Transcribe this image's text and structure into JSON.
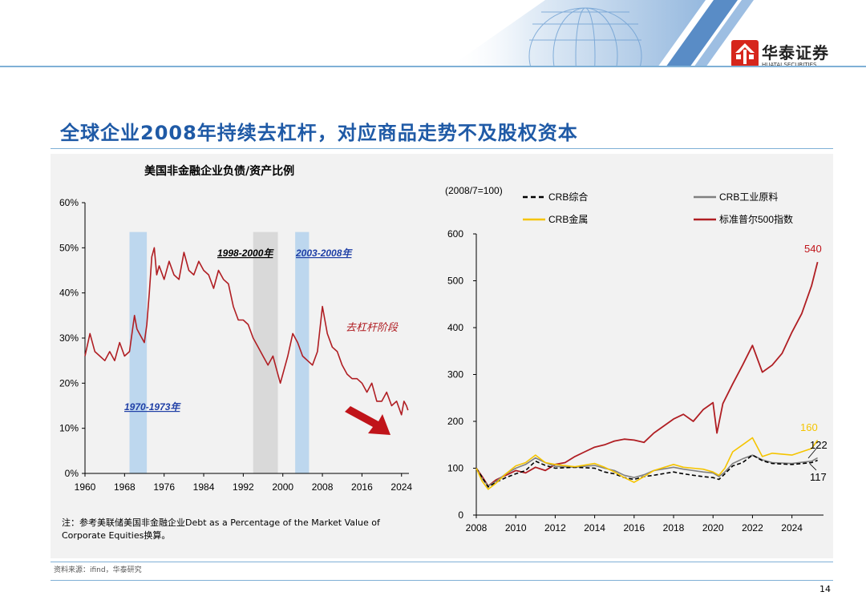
{
  "header": {
    "logo_cn": "华泰证券",
    "logo_en": "HUATAI SECURITIES"
  },
  "slide": {
    "title": "全球企业2008年持续去杠杆，对应商品走势不及股权资本",
    "note": "注：参考美联储美国非金融企业Debt as a Percentage of the Market Value of Corporate Equities换算。",
    "source": "资料来源：ifind，华泰研究",
    "page_number": "14"
  },
  "colors": {
    "accent_blue": "#1f5aa6",
    "line_red": "#b01e23",
    "bar_blue": "#bdd7ee",
    "bar_gray": "#d9d9d9",
    "crb_gold": "#f5c400",
    "crb_gray": "#808080",
    "crb_black": "#000000"
  },
  "chart_data": [
    {
      "type": "line",
      "title": "美国非金融企业负债/资产比例",
      "y_tick_labels": [
        "0%",
        "10%",
        "20%",
        "30%",
        "40%",
        "50%",
        "60%"
      ],
      "x_tick_labels": [
        "1960",
        "1968",
        "1976",
        "1984",
        "1992",
        "2000",
        "2008",
        "2016",
        "2024"
      ],
      "xlim": [
        1960,
        2025.5
      ],
      "ylim": [
        0,
        60
      ],
      "grid": false,
      "series": [
        {
          "x": [
            1960,
            1961,
            1962,
            1963,
            1964,
            1965,
            1966,
            1967,
            1968,
            1969,
            1970,
            1970.5,
            1971,
            1971.5,
            1972,
            1972.5,
            1973,
            1973.5,
            1974,
            1974.5,
            1975,
            1976,
            1977,
            1978,
            1979,
            1980,
            1981,
            1982,
            1983,
            1984,
            1985,
            1986,
            1987,
            1988,
            1989,
            1990,
            1991,
            1992,
            1993,
            1994,
            1995,
            1996,
            1997,
            1998,
            1999,
            1999.5,
            2000,
            2001,
            2002,
            2003,
            2004,
            2005,
            2006,
            2007,
            2008,
            2009,
            2010,
            2011,
            2012,
            2013,
            2014,
            2015,
            2016,
            2017,
            2018,
            2019,
            2020,
            2021,
            2022,
            2023,
            2024,
            2024.5,
            2025,
            2025.3
          ],
          "y": [
            26,
            31,
            27,
            26,
            25,
            27,
            25,
            29,
            26,
            27,
            35,
            32,
            31,
            30,
            29,
            33,
            40,
            48,
            50,
            44,
            46,
            43,
            47,
            44,
            43,
            49,
            45,
            44,
            47,
            45,
            44,
            41,
            45,
            43,
            42,
            37,
            34,
            34,
            33,
            30,
            28,
            26,
            24,
            26,
            22,
            20,
            22,
            26,
            31,
            29,
            26,
            25,
            24,
            27,
            37,
            31,
            28,
            27,
            24,
            22,
            21,
            21,
            20,
            18,
            20,
            16,
            16,
            18,
            15,
            16,
            13,
            16,
            15,
            14
          ],
          "color": "#b01e23"
        }
      ],
      "highlight_periods": [
        {
          "label": "1970-1973年",
          "start": 1969,
          "end": 1972.5,
          "color": "#bdd7ee"
        },
        {
          "label": "1998-2000年",
          "start": 1994,
          "end": 1999,
          "color": "#d9d9d9"
        },
        {
          "label": "2003-2008年",
          "start": 2002.5,
          "end": 2005.3,
          "color": "#bdd7ee"
        }
      ],
      "annotations": [
        "去杠杆阶段"
      ]
    },
    {
      "type": "line",
      "unit_label": "(2008/7=100)",
      "y_tick_labels": [
        "0",
        "100",
        "200",
        "300",
        "400",
        "500",
        "600"
      ],
      "x_tick_labels": [
        "2008",
        "2010",
        "2012",
        "2014",
        "2016",
        "2018",
        "2020",
        "2022",
        "2024"
      ],
      "xlim": [
        2008,
        2025.6
      ],
      "ylim": [
        0,
        600
      ],
      "grid": false,
      "legend_position": "top",
      "series": [
        {
          "name": "CRB综合",
          "color": "#000000",
          "dash": true,
          "x": [
            2008,
            2008.3,
            2008.6,
            2009,
            2009.5,
            2010,
            2010.5,
            2011,
            2011.5,
            2012,
            2013,
            2014,
            2014.5,
            2015,
            2015.5,
            2016,
            2016.5,
            2017,
            2018,
            2018.5,
            2019,
            2019.5,
            2020,
            2020.3,
            2020.6,
            2021,
            2021.5,
            2022,
            2022.5,
            2023,
            2024,
            2025,
            2025.3
          ],
          "y": [
            100,
            80,
            60,
            70,
            80,
            88,
            95,
            115,
            106,
            100,
            102,
            100,
            92,
            88,
            80,
            76,
            82,
            85,
            92,
            88,
            85,
            82,
            80,
            76,
            88,
            105,
            112,
            128,
            116,
            110,
            108,
            112,
            117
          ]
        },
        {
          "name": "CRB工业原料",
          "color": "#808080",
          "dash": false,
          "x": [
            2008,
            2008.3,
            2008.6,
            2009,
            2009.5,
            2010,
            2010.5,
            2011,
            2011.5,
            2012,
            2013,
            2014,
            2014.5,
            2015,
            2015.5,
            2016,
            2016.5,
            2017,
            2018,
            2018.5,
            2019,
            2019.5,
            2020,
            2020.3,
            2020.6,
            2021,
            2021.5,
            2022,
            2022.5,
            2023,
            2024,
            2025,
            2025.3
          ],
          "y": [
            100,
            78,
            62,
            72,
            88,
            100,
            108,
            122,
            112,
            104,
            102,
            106,
            100,
            95,
            85,
            80,
            86,
            95,
            102,
            98,
            95,
            92,
            90,
            82,
            92,
            110,
            120,
            128,
            118,
            112,
            110,
            115,
            122
          ]
        },
        {
          "name": "CRB金属",
          "color": "#f5c400",
          "dash": false,
          "x": [
            2008,
            2008.3,
            2008.6,
            2009,
            2009.5,
            2010,
            2010.5,
            2011,
            2011.5,
            2012,
            2013,
            2014,
            2014.5,
            2015,
            2015.5,
            2016,
            2016.5,
            2017,
            2018,
            2018.5,
            2019,
            2019.5,
            2020,
            2020.3,
            2020.6,
            2021,
            2021.5,
            2022,
            2022.5,
            2023,
            2024,
            2025,
            2025.3
          ],
          "y": [
            100,
            72,
            55,
            68,
            88,
            105,
            112,
            128,
            112,
            108,
            103,
            110,
            102,
            92,
            80,
            70,
            82,
            95,
            108,
            102,
            100,
            98,
            92,
            85,
            100,
            135,
            150,
            165,
            125,
            132,
            128,
            142,
            160
          ]
        },
        {
          "name": "标准普尔500指数",
          "color": "#b01e23",
          "dash": false,
          "x": [
            2008,
            2008.3,
            2008.6,
            2009,
            2009.5,
            2010,
            2010.5,
            2011,
            2011.5,
            2012,
            2012.5,
            2013,
            2013.5,
            2014,
            2014.5,
            2015,
            2015.5,
            2016,
            2016.5,
            2017,
            2017.5,
            2018,
            2018.5,
            2019,
            2019.5,
            2020,
            2020.2,
            2020.5,
            2021,
            2021.5,
            2022,
            2022.5,
            2023,
            2023.5,
            2024,
            2024.5,
            2025,
            2025.3
          ],
          "y": [
            100,
            82,
            62,
            75,
            85,
            95,
            90,
            102,
            95,
            108,
            112,
            125,
            135,
            145,
            150,
            158,
            162,
            160,
            155,
            175,
            190,
            205,
            215,
            200,
            225,
            240,
            175,
            238,
            280,
            320,
            362,
            305,
            320,
            345,
            390,
            430,
            490,
            540
          ]
        }
      ],
      "end_labels": [
        {
          "series": "标准普尔500指数",
          "text": "540"
        },
        {
          "series": "CRB金属",
          "text": "160"
        },
        {
          "series": "CRB工业原料",
          "text": "122"
        },
        {
          "series": "CRB综合",
          "text": "117"
        }
      ]
    }
  ]
}
